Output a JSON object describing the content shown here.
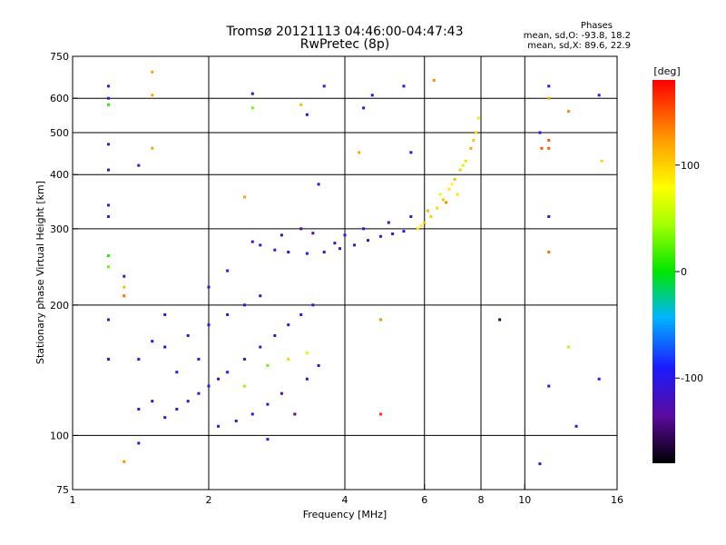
{
  "chart_data": {
    "type": "scatter",
    "title": "Tromsø 20121113 04:46:00-04:47:43",
    "subtitle": "RwPretec (8p)",
    "info": [
      "Phases",
      "mean, sd,O: -93.8, 18.2",
      "mean, sd,X: 89.6, 22.9"
    ],
    "xlabel": "Frequency [MHz]",
    "ylabel": "Stationary phase Virtual Height [km]",
    "xscale": "log",
    "yscale": "log",
    "xlim": [
      1,
      16
    ],
    "ylim": [
      75,
      750
    ],
    "xticks": [
      1,
      2,
      4,
      6,
      8,
      10,
      16
    ],
    "yticks": [
      75,
      100,
      200,
      300,
      400,
      500,
      600,
      750
    ],
    "xgrid": [
      2,
      4,
      6,
      8,
      10
    ],
    "ygrid": [
      100,
      200,
      300,
      400,
      500,
      600
    ],
    "colorbar": {
      "label": "[deg]",
      "ticks": [
        -100,
        0,
        100
      ],
      "range": [
        -180,
        180
      ],
      "colormap": "rainbow (black-purple-blue-cyan-green-yellow-orange-red)"
    },
    "series": [
      {
        "points": [
          [
            2.6,
            275,
            -110
          ],
          [
            2.8,
            268,
            -100
          ],
          [
            3.0,
            265,
            -105
          ],
          [
            3.3,
            263,
            -90
          ],
          [
            3.6,
            265,
            -100
          ],
          [
            3.9,
            270,
            -110
          ],
          [
            4.2,
            275,
            -95
          ],
          [
            4.5,
            282,
            -100
          ],
          [
            4.8,
            288,
            -120
          ],
          [
            5.1,
            292,
            -110
          ],
          [
            5.4,
            296,
            -100
          ],
          [
            2.5,
            280,
            -95
          ],
          [
            2.9,
            290,
            -120
          ],
          [
            3.4,
            293,
            -130
          ],
          [
            3.8,
            278,
            -115
          ],
          [
            4.4,
            300,
            -105
          ],
          [
            5.0,
            310,
            -125
          ],
          [
            5.6,
            320,
            -110
          ],
          [
            4.0,
            290,
            -90
          ],
          [
            3.2,
            300,
            -140
          ],
          [
            5.8,
            300,
            90
          ],
          [
            6.0,
            310,
            110
          ],
          [
            6.2,
            320,
            100
          ],
          [
            6.4,
            335,
            95
          ],
          [
            6.6,
            350,
            105
          ],
          [
            6.8,
            370,
            90
          ],
          [
            7.0,
            390,
            110
          ],
          [
            7.2,
            410,
            100
          ],
          [
            7.4,
            430,
            95
          ],
          [
            7.6,
            460,
            120
          ],
          [
            7.8,
            500,
            100
          ],
          [
            7.9,
            540,
            90
          ],
          [
            6.5,
            360,
            70
          ],
          [
            6.9,
            380,
            80
          ],
          [
            7.3,
            420,
            60
          ],
          [
            6.1,
            330,
            115
          ],
          [
            6.7,
            345,
            130
          ],
          [
            7.1,
            360,
            95
          ],
          [
            5.9,
            305,
            85
          ],
          [
            7.7,
            480,
            105
          ],
          [
            1.6,
            110,
            -100
          ],
          [
            1.7,
            115,
            -95
          ],
          [
            1.8,
            120,
            -110
          ],
          [
            1.9,
            125,
            -105
          ],
          [
            2.0,
            130,
            -90
          ],
          [
            2.1,
            135,
            -115
          ],
          [
            2.2,
            140,
            -100
          ],
          [
            2.4,
            150,
            -95
          ],
          [
            2.6,
            160,
            -110
          ],
          [
            2.8,
            170,
            -120
          ],
          [
            3.0,
            180,
            -100
          ],
          [
            3.2,
            190,
            -105
          ],
          [
            1.6,
            160,
            -100
          ],
          [
            1.8,
            170,
            -110
          ],
          [
            2.0,
            180,
            -95
          ],
          [
            2.2,
            190,
            -105
          ],
          [
            2.4,
            200,
            -100
          ],
          [
            2.6,
            210,
            -115
          ],
          [
            1.7,
            140,
            -90
          ],
          [
            1.9,
            150,
            -100
          ],
          [
            2.1,
            105,
            -105
          ],
          [
            2.3,
            108,
            -110
          ],
          [
            2.5,
            112,
            -100
          ],
          [
            2.7,
            118,
            -95
          ],
          [
            2.9,
            125,
            -130
          ],
          [
            3.1,
            112,
            -140
          ],
          [
            3.3,
            135,
            -120
          ],
          [
            3.5,
            145,
            -100
          ],
          [
            3.4,
            200,
            -100
          ],
          [
            2.0,
            220,
            -110
          ],
          [
            1.4,
            115,
            -100
          ],
          [
            1.5,
            120,
            -105
          ],
          [
            1.5,
            165,
            -100
          ],
          [
            1.6,
            190,
            -95
          ],
          [
            2.2,
            240,
            -100
          ],
          [
            2.7,
            145,
            30
          ],
          [
            3.0,
            150,
            100
          ],
          [
            3.3,
            155,
            60
          ],
          [
            2.4,
            130,
            40
          ],
          [
            1.2,
            640,
            -100
          ],
          [
            1.2,
            600,
            -110
          ],
          [
            1.2,
            580,
            10
          ],
          [
            1.2,
            470,
            -105
          ],
          [
            1.2,
            410,
            -100
          ],
          [
            1.2,
            340,
            -100
          ],
          [
            1.2,
            320,
            -110
          ],
          [
            1.2,
            260,
            10
          ],
          [
            1.2,
            245,
            30
          ],
          [
            1.2,
            185,
            -100
          ],
          [
            1.2,
            150,
            -100
          ],
          [
            1.5,
            690,
            120
          ],
          [
            1.5,
            610,
            120
          ],
          [
            1.5,
            460,
            120
          ],
          [
            1.4,
            420,
            -100
          ],
          [
            2.5,
            615,
            -100
          ],
          [
            2.5,
            570,
            30
          ],
          [
            3.6,
            640,
            -100
          ],
          [
            4.4,
            570,
            -100
          ],
          [
            4.6,
            610,
            -100
          ],
          [
            5.4,
            640,
            -100
          ],
          [
            6.3,
            660,
            130
          ],
          [
            10.8,
            500,
            -100
          ],
          [
            10.9,
            460,
            150
          ],
          [
            11.3,
            640,
            -100
          ],
          [
            11.3,
            600,
            120
          ],
          [
            11.3,
            480,
            150
          ],
          [
            11.3,
            460,
            150
          ],
          [
            11.3,
            320,
            -110
          ],
          [
            11.3,
            265,
            140
          ],
          [
            12.5,
            560,
            130
          ],
          [
            14.6,
            610,
            -100
          ],
          [
            14.8,
            430,
            100
          ],
          [
            11.3,
            130,
            -100
          ],
          [
            12.5,
            160,
            50
          ],
          [
            13.0,
            105,
            -100
          ],
          [
            14.6,
            135,
            -100
          ],
          [
            10.8,
            86,
            -100
          ],
          [
            8.8,
            185,
            -160
          ],
          [
            4.8,
            185,
            130
          ],
          [
            4.8,
            112,
            160
          ],
          [
            2.7,
            98,
            -100
          ],
          [
            1.3,
            87,
            130
          ],
          [
            1.4,
            96,
            -100
          ],
          [
            1.3,
            233,
            -100
          ],
          [
            1.3,
            220,
            110
          ],
          [
            1.3,
            210,
            140
          ],
          [
            1.4,
            150,
            -100
          ],
          [
            2.4,
            355,
            120
          ],
          [
            3.5,
            380,
            -100
          ],
          [
            3.2,
            580,
            110
          ],
          [
            3.3,
            550,
            -100
          ],
          [
            4.3,
            450,
            120
          ],
          [
            5.6,
            450,
            -100
          ]
        ]
      }
    ]
  }
}
